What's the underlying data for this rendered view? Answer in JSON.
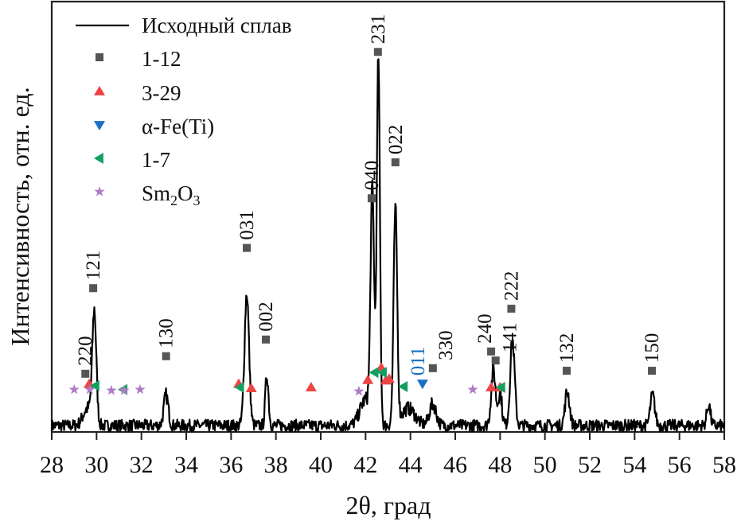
{
  "chart_data": {
    "type": "line",
    "xlabel": "2θ, град",
    "ylabel": "Интенсивность, отн. ед.",
    "xlim": [
      28,
      58
    ],
    "ylim": [
      0,
      100
    ],
    "xticks": [
      28,
      30,
      32,
      34,
      36,
      38,
      40,
      42,
      44,
      46,
      48,
      50,
      52,
      54,
      56,
      58
    ],
    "grid": false,
    "legend_position": "top-left",
    "curve": {
      "name": "Исходный сплав",
      "color": "#000000",
      "baseline": 1.5,
      "peaks": [
        {
          "x": 29.9,
          "y": 26,
          "w": 0.09
        },
        {
          "x": 29.6,
          "y": 4,
          "w": 0.2
        },
        {
          "x": 33.1,
          "y": 7,
          "w": 0.1
        },
        {
          "x": 36.7,
          "y": 31,
          "w": 0.1
        },
        {
          "x": 37.6,
          "y": 12,
          "w": 0.07
        },
        {
          "x": 42.3,
          "y": 53,
          "w": 0.08
        },
        {
          "x": 42.57,
          "y": 86,
          "w": 0.07
        },
        {
          "x": 43.33,
          "y": 50,
          "w": 0.08
        },
        {
          "x": 42.0,
          "y": 6,
          "w": 0.25
        },
        {
          "x": 43.9,
          "y": 4,
          "w": 0.3
        },
        {
          "x": 45.0,
          "y": 5,
          "w": 0.15
        },
        {
          "x": 47.7,
          "y": 13,
          "w": 0.1
        },
        {
          "x": 48.0,
          "y": 8,
          "w": 0.08
        },
        {
          "x": 48.55,
          "y": 20,
          "w": 0.1
        },
        {
          "x": 51.0,
          "y": 8,
          "w": 0.1
        },
        {
          "x": 54.8,
          "y": 7,
          "w": 0.1
        },
        {
          "x": 57.3,
          "y": 5,
          "w": 0.08
        }
      ]
    },
    "marker_series": [
      {
        "name": "1-12",
        "marker": "square",
        "color": "#555555",
        "points": [
          {
            "x": 29.5,
            "y": 13.6,
            "label": "220"
          },
          {
            "x": 29.85,
            "y": 33.6,
            "label": "121"
          },
          {
            "x": 33.1,
            "y": 17.7,
            "label": "130"
          },
          {
            "x": 36.7,
            "y": 43,
            "label": "031"
          },
          {
            "x": 37.55,
            "y": 21.6,
            "label": "002"
          },
          {
            "x": 42.27,
            "y": 54.6,
            "label": "040"
          },
          {
            "x": 42.55,
            "y": 88.8,
            "label": "231"
          },
          {
            "x": 43.33,
            "y": 63,
            "label": "022"
          },
          {
            "x": 45.0,
            "y": 14.9,
            "label": "330"
          },
          {
            "x": 47.6,
            "y": 18.8,
            "label": "240"
          },
          {
            "x": 47.8,
            "y": 16.7,
            "label": "141"
          },
          {
            "x": 48.5,
            "y": 28.8,
            "label": "222"
          },
          {
            "x": 50.97,
            "y": 14.3,
            "label": "132"
          },
          {
            "x": 54.77,
            "y": 14.3,
            "label": "150"
          }
        ]
      },
      {
        "name": "3-29",
        "marker": "triangle-up",
        "color": "#ee4444",
        "points": [
          {
            "x": 29.67,
            "y": 11.2
          },
          {
            "x": 36.34,
            "y": 11.2
          },
          {
            "x": 36.9,
            "y": 10.2
          },
          {
            "x": 39.57,
            "y": 10.4
          },
          {
            "x": 42.1,
            "y": 12.1
          },
          {
            "x": 42.7,
            "y": 15
          },
          {
            "x": 42.9,
            "y": 12
          },
          {
            "x": 43.05,
            "y": 12.4
          },
          {
            "x": 47.6,
            "y": 10.4
          },
          {
            "x": 48.0,
            "y": 10.4
          }
        ]
      },
      {
        "name": "α-Fe(Ti)",
        "marker": "triangle-down",
        "color": "#1a6fc4",
        "points": [
          {
            "x": 44.54,
            "y": 11.3,
            "label": "011"
          }
        ]
      },
      {
        "name": "1-7",
        "marker": "triangle-left",
        "color": "#11a060",
        "points": [
          {
            "x": 29.95,
            "y": 10.8
          },
          {
            "x": 31.2,
            "y": 9.9
          },
          {
            "x": 36.4,
            "y": 10.4
          },
          {
            "x": 42.4,
            "y": 13.9
          },
          {
            "x": 42.77,
            "y": 13.9
          },
          {
            "x": 43.7,
            "y": 10.6
          },
          {
            "x": 48.05,
            "y": 10.4
          }
        ]
      },
      {
        "name": "Sm2O3",
        "marker": "star",
        "color": "#b07cc6",
        "points": [
          {
            "x": 29.0,
            "y": 9.9
          },
          {
            "x": 29.7,
            "y": 9.9
          },
          {
            "x": 30.66,
            "y": 9.7
          },
          {
            "x": 31.23,
            "y": 9.7
          },
          {
            "x": 31.94,
            "y": 9.9
          },
          {
            "x": 41.7,
            "y": 9.5
          },
          {
            "x": 46.78,
            "y": 9.9
          }
        ]
      }
    ]
  }
}
